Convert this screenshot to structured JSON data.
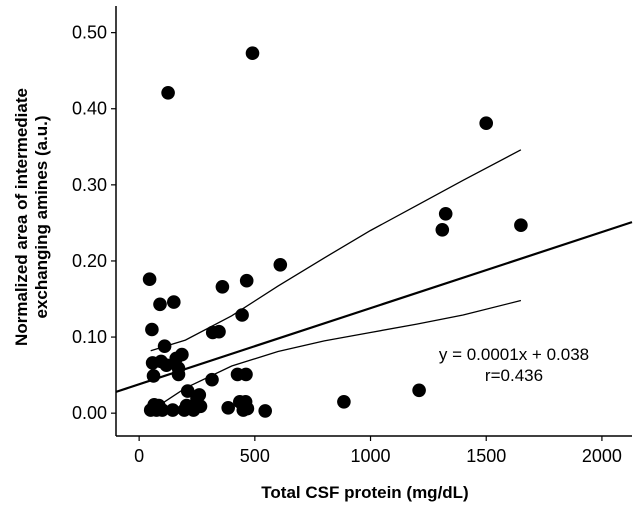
{
  "chart_data": {
    "type": "scatter",
    "title": "",
    "xlabel": "Total CSF protein (mg/dL)",
    "ylabel_lines": [
      "Normalized area of intermediate",
      "exchanging amines (a.u.)"
    ],
    "xlim": [
      -100,
      2130
    ],
    "ylim": [
      -0.03,
      0.535
    ],
    "x_ticks": [
      {
        "value": 0,
        "label": "0"
      },
      {
        "value": 500,
        "label": "500"
      },
      {
        "value": 1000,
        "label": "1000"
      },
      {
        "value": 1500,
        "label": "1500"
      },
      {
        "value": 2000,
        "label": "2000"
      }
    ],
    "y_ticks": [
      {
        "value": 0.0,
        "label": "0.00"
      },
      {
        "value": 0.1,
        "label": "0.10"
      },
      {
        "value": 0.2,
        "label": "0.20"
      },
      {
        "value": 0.3,
        "label": "0.30"
      },
      {
        "value": 0.4,
        "label": "0.40"
      },
      {
        "value": 0.5,
        "label": "0.50"
      }
    ],
    "grid": false,
    "points": [
      {
        "x": 45,
        "y": 0.176
      },
      {
        "x": 55,
        "y": 0.11
      },
      {
        "x": 58,
        "y": 0.066
      },
      {
        "x": 62,
        "y": 0.049
      },
      {
        "x": 50,
        "y": 0.004
      },
      {
        "x": 65,
        "y": 0.011
      },
      {
        "x": 75,
        "y": 0.004
      },
      {
        "x": 85,
        "y": 0.01
      },
      {
        "x": 90,
        "y": 0.143
      },
      {
        "x": 95,
        "y": 0.068
      },
      {
        "x": 100,
        "y": 0.004
      },
      {
        "x": 110,
        "y": 0.088
      },
      {
        "x": 118,
        "y": 0.063
      },
      {
        "x": 125,
        "y": 0.421
      },
      {
        "x": 145,
        "y": 0.004
      },
      {
        "x": 150,
        "y": 0.146
      },
      {
        "x": 160,
        "y": 0.072
      },
      {
        "x": 170,
        "y": 0.059
      },
      {
        "x": 170,
        "y": 0.051
      },
      {
        "x": 185,
        "y": 0.077
      },
      {
        "x": 195,
        "y": 0.004
      },
      {
        "x": 205,
        "y": 0.01
      },
      {
        "x": 210,
        "y": 0.029
      },
      {
        "x": 235,
        "y": 0.004
      },
      {
        "x": 250,
        "y": 0.019
      },
      {
        "x": 260,
        "y": 0.024
      },
      {
        "x": 265,
        "y": 0.009
      },
      {
        "x": 315,
        "y": 0.044
      },
      {
        "x": 318,
        "y": 0.106
      },
      {
        "x": 345,
        "y": 0.107
      },
      {
        "x": 360,
        "y": 0.166
      },
      {
        "x": 385,
        "y": 0.007
      },
      {
        "x": 425,
        "y": 0.051
      },
      {
        "x": 435,
        "y": 0.015
      },
      {
        "x": 445,
        "y": 0.129
      },
      {
        "x": 450,
        "y": 0.004
      },
      {
        "x": 460,
        "y": 0.015
      },
      {
        "x": 462,
        "y": 0.051
      },
      {
        "x": 465,
        "y": 0.174
      },
      {
        "x": 468,
        "y": 0.006
      },
      {
        "x": 490,
        "y": 0.473
      },
      {
        "x": 545,
        "y": 0.003
      },
      {
        "x": 610,
        "y": 0.195
      },
      {
        "x": 885,
        "y": 0.015
      },
      {
        "x": 1210,
        "y": 0.03
      },
      {
        "x": 1310,
        "y": 0.241
      },
      {
        "x": 1325,
        "y": 0.262
      },
      {
        "x": 1500,
        "y": 0.381
      },
      {
        "x": 1650,
        "y": 0.247
      }
    ],
    "fit_line": {
      "slope": 0.0001,
      "intercept": 0.038,
      "x_range": [
        -100,
        2130
      ]
    },
    "ci_upper": [
      {
        "x": 50,
        "y": 0.082
      },
      {
        "x": 200,
        "y": 0.096
      },
      {
        "x": 400,
        "y": 0.128
      },
      {
        "x": 600,
        "y": 0.167
      },
      {
        "x": 800,
        "y": 0.204
      },
      {
        "x": 1000,
        "y": 0.24
      },
      {
        "x": 1200,
        "y": 0.273
      },
      {
        "x": 1400,
        "y": 0.306
      },
      {
        "x": 1650,
        "y": 0.346
      }
    ],
    "ci_lower": [
      {
        "x": 50,
        "y": 0.003
      },
      {
        "x": 200,
        "y": 0.033
      },
      {
        "x": 400,
        "y": 0.062
      },
      {
        "x": 600,
        "y": 0.081
      },
      {
        "x": 800,
        "y": 0.095
      },
      {
        "x": 1000,
        "y": 0.106
      },
      {
        "x": 1200,
        "y": 0.117
      },
      {
        "x": 1400,
        "y": 0.129
      },
      {
        "x": 1650,
        "y": 0.148
      }
    ],
    "annotations": {
      "equation": "y = 0.0001x + 0.038",
      "r_value": "r=0.436"
    }
  }
}
